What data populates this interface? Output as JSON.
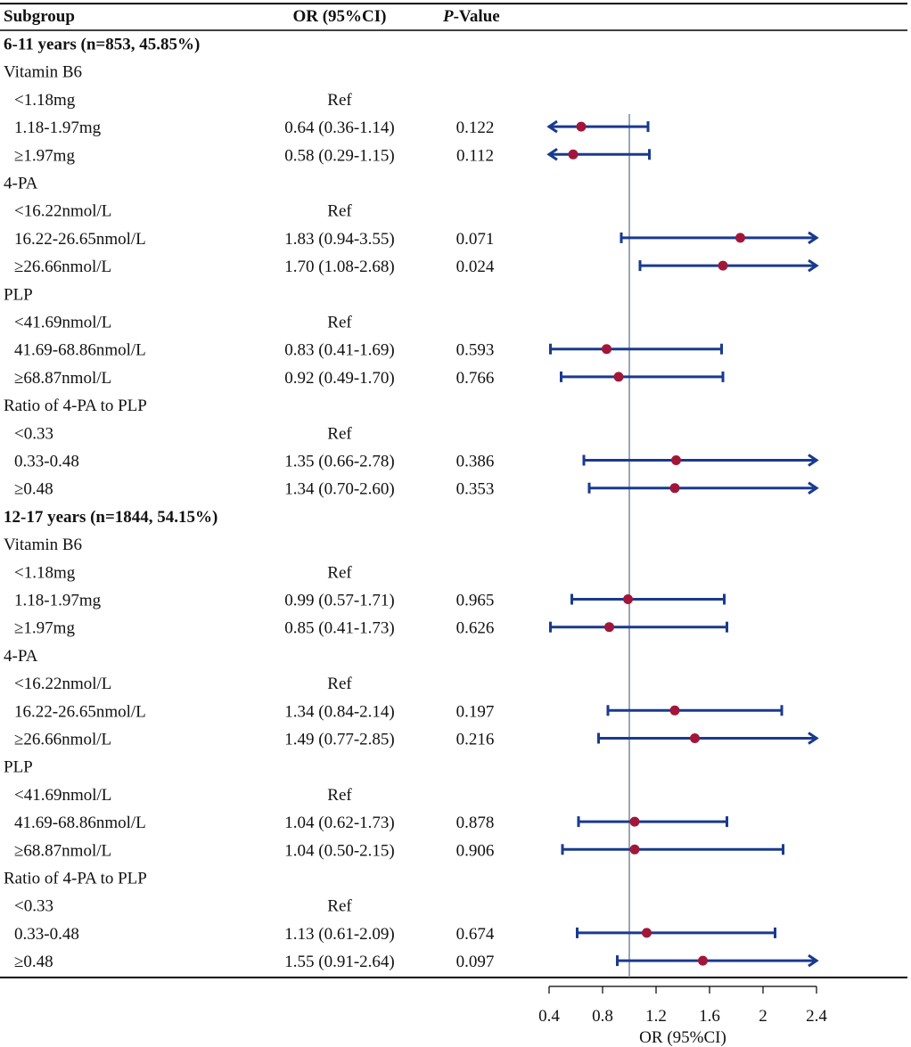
{
  "chart_data": {
    "type": "forest",
    "columns": {
      "subgroup": "Subgroup",
      "or": "OR (95%CI)",
      "p_prefix": "P",
      "p_suffix": "-Value"
    },
    "xlabel": "OR (95%CI)",
    "x_ticks": [
      0.4,
      0.8,
      1.2,
      1.6,
      2,
      2.4
    ],
    "x_range": [
      0.4,
      2.4
    ],
    "reference_line": 1,
    "rows": [
      {
        "kind": "group",
        "label": "6-11 years (n=853, 45.85%)"
      },
      {
        "kind": "variable",
        "label": "Vitamin B6"
      },
      {
        "kind": "level",
        "label": "<1.18mg",
        "or_text": "Ref",
        "p": ""
      },
      {
        "kind": "level",
        "label": "1.18-1.97mg",
        "or_text": "0.64 (0.36-1.14)",
        "p": "0.122",
        "or": 0.64,
        "lo": 0.36,
        "hi": 1.14
      },
      {
        "kind": "level",
        "label": "≥1.97mg",
        "or_text": "0.58 (0.29-1.15)",
        "p": "0.112",
        "or": 0.58,
        "lo": 0.29,
        "hi": 1.15
      },
      {
        "kind": "variable",
        "label": "4-PA"
      },
      {
        "kind": "level",
        "label": "<16.22nmol/L",
        "or_text": "Ref",
        "p": ""
      },
      {
        "kind": "level",
        "label": "16.22-26.65nmol/L",
        "or_text": "1.83 (0.94-3.55)",
        "p": "0.071",
        "or": 1.83,
        "lo": 0.94,
        "hi": 3.55
      },
      {
        "kind": "level",
        "label": "≥26.66nmol/L",
        "or_text": "1.70 (1.08-2.68)",
        "p": "0.024",
        "or": 1.7,
        "lo": 1.08,
        "hi": 2.68
      },
      {
        "kind": "variable",
        "label": "PLP"
      },
      {
        "kind": "level",
        "label": "<41.69nmol/L",
        "or_text": "Ref",
        "p": ""
      },
      {
        "kind": "level",
        "label": "41.69-68.86nmol/L",
        "or_text": "0.83 (0.41-1.69)",
        "p": "0.593",
        "or": 0.83,
        "lo": 0.41,
        "hi": 1.69
      },
      {
        "kind": "level",
        "label": "≥68.87nmol/L",
        "or_text": "0.92 (0.49-1.70)",
        "p": "0.766",
        "or": 0.92,
        "lo": 0.49,
        "hi": 1.7
      },
      {
        "kind": "variable",
        "label": "Ratio of 4-PA to PLP"
      },
      {
        "kind": "level",
        "label": "<0.33",
        "or_text": "Ref",
        "p": ""
      },
      {
        "kind": "level",
        "label": "0.33-0.48",
        "or_text": "1.35 (0.66-2.78)",
        "p": "0.386",
        "or": 1.35,
        "lo": 0.66,
        "hi": 2.78
      },
      {
        "kind": "level",
        "label": "≥0.48",
        "or_text": "1.34 (0.70-2.60)",
        "p": "0.353",
        "or": 1.34,
        "lo": 0.7,
        "hi": 2.6
      },
      {
        "kind": "group",
        "label": "12-17 years (n=1844, 54.15%)"
      },
      {
        "kind": "variable",
        "label": "Vitamin B6"
      },
      {
        "kind": "level",
        "label": "<1.18mg",
        "or_text": "Ref",
        "p": ""
      },
      {
        "kind": "level",
        "label": "1.18-1.97mg",
        "or_text": "0.99 (0.57-1.71)",
        "p": "0.965",
        "or": 0.99,
        "lo": 0.57,
        "hi": 1.71
      },
      {
        "kind": "level",
        "label": "≥1.97mg",
        "or_text": "0.85 (0.41-1.73)",
        "p": "0.626",
        "or": 0.85,
        "lo": 0.41,
        "hi": 1.73
      },
      {
        "kind": "variable",
        "label": "4-PA"
      },
      {
        "kind": "level",
        "label": "<16.22nmol/L",
        "or_text": "Ref",
        "p": ""
      },
      {
        "kind": "level",
        "label": "16.22-26.65nmol/L",
        "or_text": "1.34 (0.84-2.14)",
        "p": "0.197",
        "or": 1.34,
        "lo": 0.84,
        "hi": 2.14
      },
      {
        "kind": "level",
        "label": "≥26.66nmol/L",
        "or_text": "1.49 (0.77-2.85)",
        "p": "0.216",
        "or": 1.49,
        "lo": 0.77,
        "hi": 2.85
      },
      {
        "kind": "variable",
        "label": "PLP"
      },
      {
        "kind": "level",
        "label": "<41.69nmol/L",
        "or_text": "Ref",
        "p": ""
      },
      {
        "kind": "level",
        "label": "41.69-68.86nmol/L",
        "or_text": "1.04 (0.62-1.73)",
        "p": "0.878",
        "or": 1.04,
        "lo": 0.62,
        "hi": 1.73
      },
      {
        "kind": "level",
        "label": "≥68.87nmol/L",
        "or_text": "1.04 (0.50-2.15)",
        "p": "0.906",
        "or": 1.04,
        "lo": 0.5,
        "hi": 2.15
      },
      {
        "kind": "variable",
        "label": "Ratio of 4-PA to PLP"
      },
      {
        "kind": "level",
        "label": "<0.33",
        "or_text": "Ref",
        "p": ""
      },
      {
        "kind": "level",
        "label": "0.33-0.48",
        "or_text": "1.13 (0.61-2.09)",
        "p": "0.674",
        "or": 1.13,
        "lo": 0.61,
        "hi": 2.09
      },
      {
        "kind": "level",
        "label": "≥0.48",
        "or_text": "1.55 (0.91-2.64)",
        "p": "0.097",
        "or": 1.55,
        "lo": 0.91,
        "hi": 2.64
      }
    ],
    "colors": {
      "ci_line": "#1a3a8f",
      "point": "#a0173a",
      "ref_line": "#7a8a99",
      "rule": "#000000"
    }
  }
}
